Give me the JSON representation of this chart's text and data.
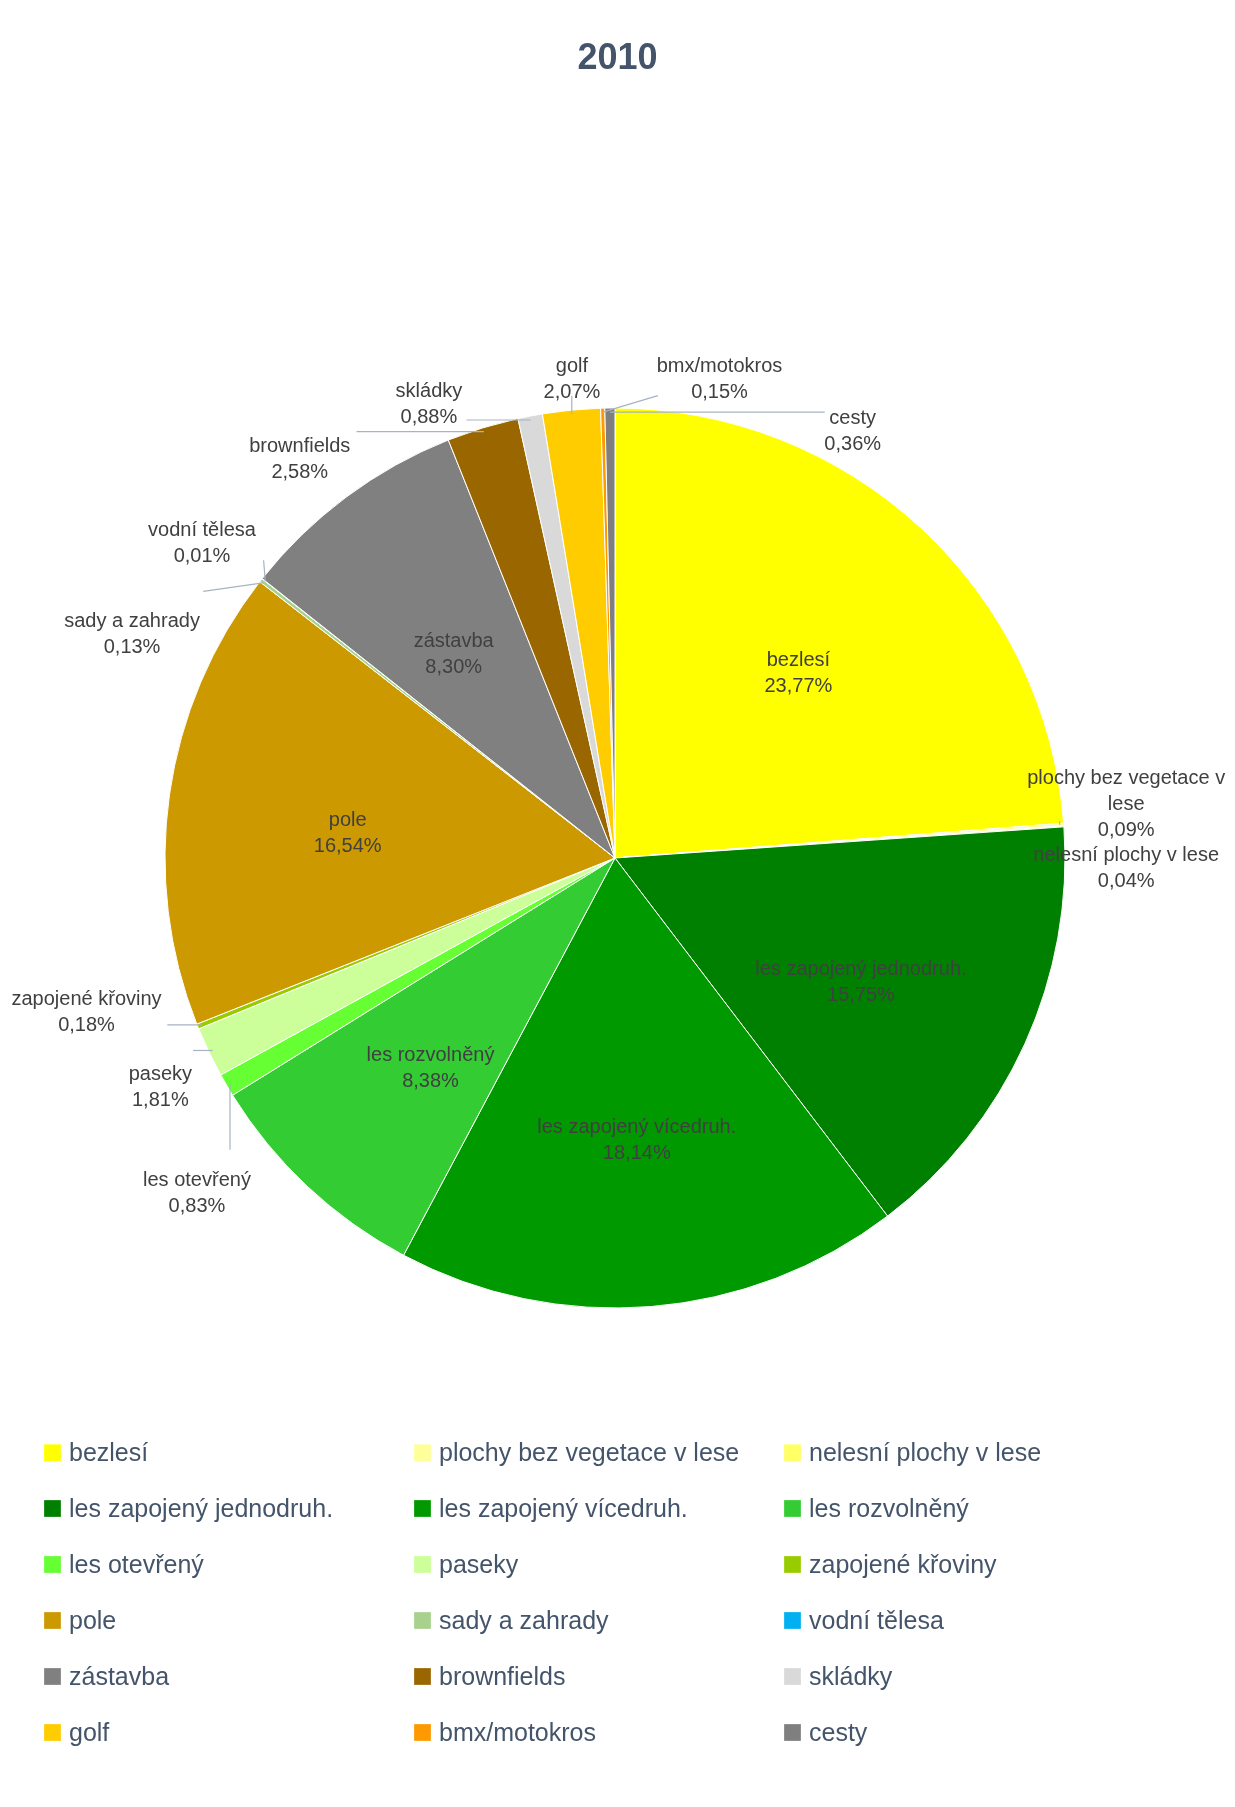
{
  "chart_data": {
    "type": "pie",
    "title": "2010",
    "categories": [
      "bezlesí",
      "plochy bez vegetace v lese",
      "nelesní plochy v lese",
      "les zapojený jednodruh.",
      "les zapojený vícedruh.",
      "les rozvolněný",
      "les otevřený",
      "paseky",
      "zapojené křoviny",
      "pole",
      "sady a zahrady",
      "vodní tělesa",
      "zástavba",
      "brownfields",
      "skládky",
      "golf",
      "bmx/motokros",
      "cesty"
    ],
    "values": [
      23.77,
      0.09,
      0.04,
      15.75,
      18.14,
      8.38,
      0.83,
      1.81,
      0.18,
      16.54,
      0.13,
      0.01,
      8.3,
      2.58,
      0.88,
      2.07,
      0.15,
      0.36
    ],
    "value_labels": [
      "23,77%",
      "0,09%",
      "0,04%",
      "15,75%",
      "18,14%",
      "8,38%",
      "0,83%",
      "1,81%",
      "0,18%",
      "16,54%",
      "0,13%",
      "0,01%",
      "8,30%",
      "2,58%",
      "0,88%",
      "2,07%",
      "0,15%",
      "0,36%"
    ],
    "colors": [
      "#ffff00",
      "#ffff99",
      "#ffff66",
      "#008000",
      "#009900",
      "#33cc33",
      "#66ff33",
      "#ccff99",
      "#99cc00",
      "#cc9900",
      "#a9d18e",
      "#00b0f0",
      "#808080",
      "#996600",
      "#d9d9d9",
      "#ffcc00",
      "#ff9900",
      "#7f7f7f"
    ],
    "legend": "bottom"
  }
}
